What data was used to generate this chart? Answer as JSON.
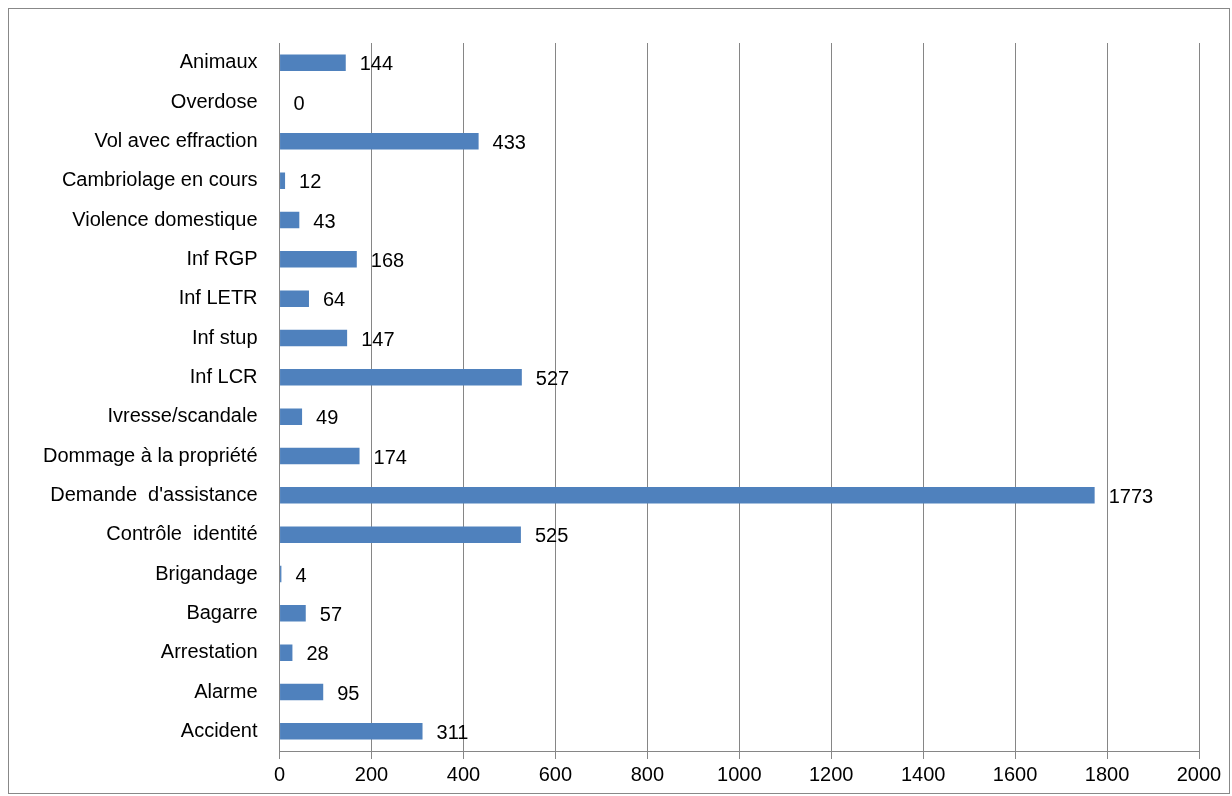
{
  "chart_data": {
    "type": "bar",
    "orientation": "horizontal",
    "categories": [
      "Animaux",
      "Overdose",
      "Vol avec effraction",
      "Cambriolage en cours",
      "Violence domestique",
      "Inf RGP",
      "Inf LETR",
      "Inf stup",
      "Inf LCR",
      "Ivresse/scandale",
      "Dommage à la propriété",
      "Demande  d'assistance",
      "Contrôle  identité",
      "Brigandage",
      "Bagarre",
      "Arrestation",
      "Alarme",
      "Accident"
    ],
    "values": [
      144,
      0,
      433,
      12,
      43,
      168,
      64,
      147,
      527,
      49,
      174,
      1773,
      525,
      4,
      57,
      28,
      95,
      311
    ],
    "color": "#4f81bd",
    "xlim": [
      0,
      2000
    ],
    "xticks": [
      0,
      200,
      400,
      600,
      800,
      1000,
      1200,
      1400,
      1600,
      1800,
      2000
    ],
    "grid": "x",
    "legend": false,
    "data_labels": true
  }
}
